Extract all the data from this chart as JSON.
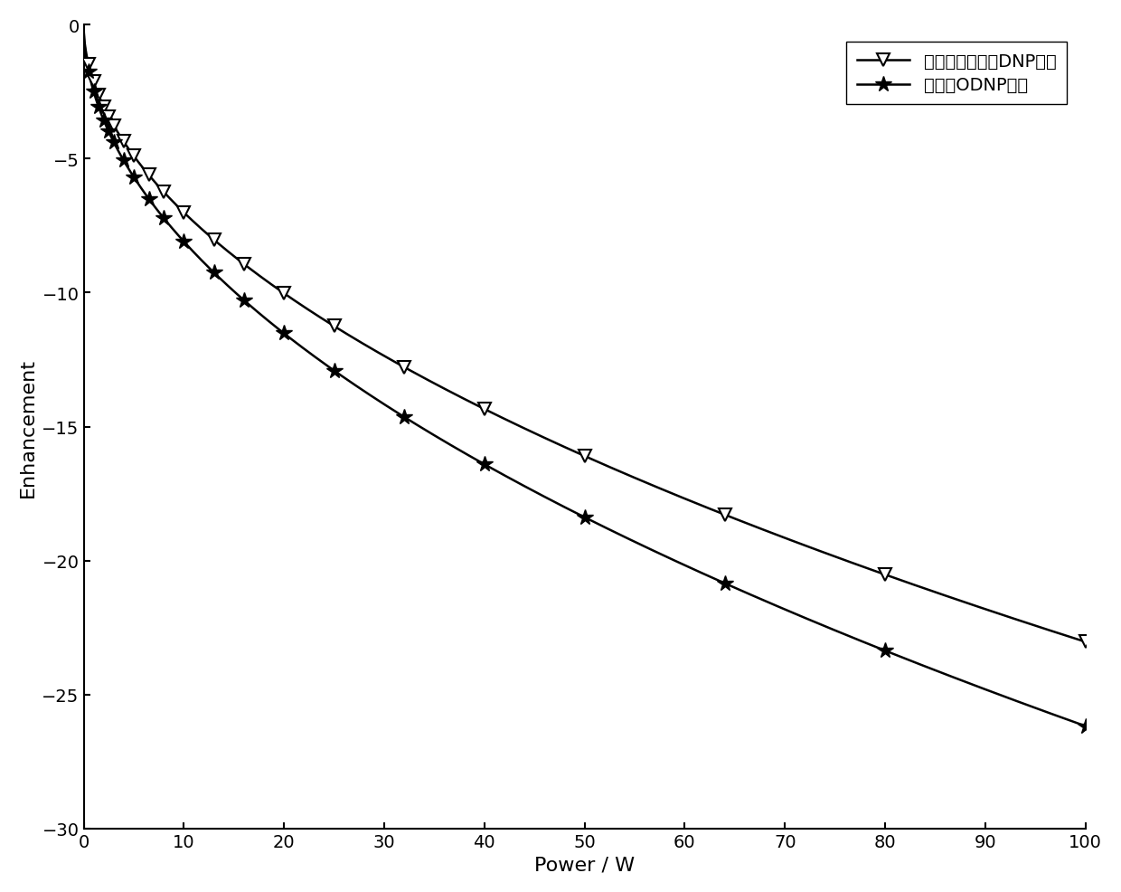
{
  "title": "",
  "xlabel": "Power / W",
  "ylabel": "Enhancement",
  "xlim": [
    0,
    100
  ],
  "ylim": [
    -30,
    0
  ],
  "xticks": [
    0,
    10,
    20,
    30,
    40,
    50,
    60,
    70,
    80,
    90,
    100
  ],
  "yticks": [
    0,
    -5,
    -10,
    -15,
    -20,
    -25,
    -30
  ],
  "line1_label": "含油水混合样品DNP增强",
  "line2_label": "矿物油ODNP增强",
  "line1_marker_x": [
    0.5,
    1.0,
    1.5,
    2.0,
    2.5,
    3.0,
    4.0,
    5.0,
    6.5,
    8.0,
    10.0,
    13.0,
    16.0,
    20.0,
    25.0,
    32.0,
    40.0,
    50.0,
    64.0,
    80.0,
    100.0
  ],
  "line1_marker_y": [
    -0.3,
    -0.7,
    -1.1,
    -1.5,
    -1.9,
    -2.3,
    -3.0,
    -3.7,
    -4.8,
    -5.9,
    -7.1,
    -8.7,
    -10.2,
    -12.0,
    -13.8,
    -15.7,
    -17.0,
    -18.2,
    -20.0,
    -21.5,
    -23.2
  ],
  "line2_marker_x": [
    0.5,
    1.0,
    1.5,
    2.0,
    2.5,
    3.0,
    4.0,
    5.0,
    6.5,
    8.0,
    10.0,
    13.0,
    16.0,
    20.0,
    25.0,
    32.0,
    40.0,
    50.0,
    64.0,
    80.0,
    100.0
  ],
  "line2_marker_y": [
    -0.4,
    -0.9,
    -1.5,
    -2.0,
    -2.6,
    -3.2,
    -4.3,
    -5.3,
    -7.0,
    -8.5,
    -10.5,
    -12.8,
    -14.8,
    -17.0,
    -19.0,
    -19.8,
    -20.5,
    -21.2,
    -22.1,
    -23.2,
    -25.2
  ],
  "line_color": "#000000",
  "bg_color": "#ffffff",
  "fontsize_label": 16,
  "fontsize_tick": 14,
  "fontsize_legend": 14,
  "line1_emax": -30.0,
  "line1_phalf": 200.0,
  "line2_emax": -35.0,
  "line2_phalf": 130.0
}
